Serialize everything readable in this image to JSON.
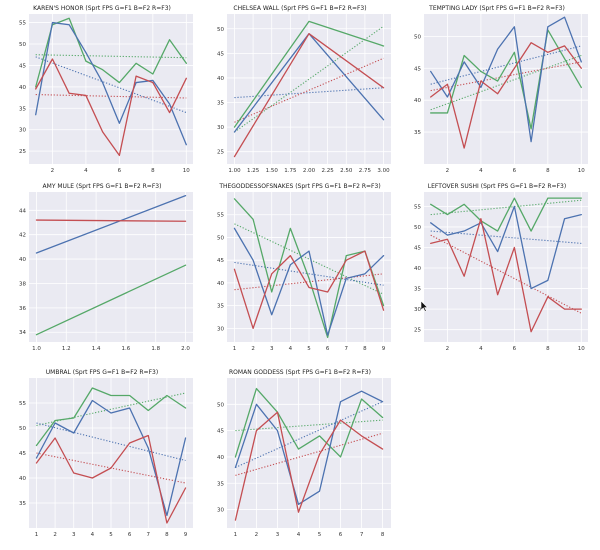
{
  "colors": {
    "G": "#55a868",
    "B": "#4c72b0",
    "R": "#c44e52"
  },
  "chart_data": [
    {
      "type": "line",
      "title": "KAREN'S HONOR (Sprt FPS G=F1 B=F2 R=F3)",
      "x": [
        1,
        2,
        3,
        4,
        5,
        6,
        7,
        8,
        9,
        10
      ],
      "xticks": [
        2,
        4,
        6,
        8,
        10
      ],
      "yticks": [
        25,
        30,
        35,
        40,
        45,
        50,
        55
      ],
      "xlim": [
        0.6,
        10.4
      ],
      "ylim": [
        22,
        57
      ],
      "series": [
        {
          "color": "G",
          "values": [
            40,
            54.5,
            56,
            46,
            44,
            41,
            45.5,
            43,
            51,
            45.5
          ]
        },
        {
          "color": "B",
          "values": [
            33.5,
            55,
            54.5,
            48,
            41,
            31.5,
            41,
            41.5,
            36,
            26.5
          ]
        },
        {
          "color": "R",
          "values": [
            39.5,
            46.5,
            38.5,
            38,
            29.5,
            24,
            42.5,
            41,
            34,
            42
          ]
        }
      ],
      "trends": [
        {
          "color": "G",
          "values": [
            47.5,
            46.8
          ]
        },
        {
          "color": "B",
          "values": [
            47,
            34
          ]
        },
        {
          "color": "R",
          "values": [
            38.2,
            37.4
          ]
        }
      ]
    },
    {
      "type": "line",
      "title": "CHELSEA WALL (Sprt FPS G=F1 B=F2 R=F3)",
      "x": [
        1,
        2,
        3
      ],
      "xticks": [
        1.0,
        1.25,
        1.5,
        1.75,
        2.0,
        2.25,
        2.5,
        2.75,
        3.0
      ],
      "xtick_labels": [
        "1.00",
        "1.25",
        "1.50",
        "1.75",
        "2.00",
        "2.25",
        "2.50",
        "2.75",
        "3.00"
      ],
      "yticks": [
        25,
        30,
        35,
        40,
        45,
        50
      ],
      "xlim": [
        0.9,
        3.1
      ],
      "ylim": [
        22.5,
        53
      ],
      "series": [
        {
          "color": "G",
          "values": [
            30,
            51.5,
            46.5
          ]
        },
        {
          "color": "B",
          "values": [
            29,
            49,
            31.5
          ]
        },
        {
          "color": "R",
          "values": [
            24,
            49,
            38
          ]
        }
      ],
      "trends": [
        {
          "color": "G",
          "values": [
            29,
            50.5
          ]
        },
        {
          "color": "B",
          "values": [
            36,
            38
          ]
        },
        {
          "color": "R",
          "values": [
            31,
            44
          ]
        }
      ]
    },
    {
      "type": "line",
      "title": "TEMPTING LADY (Sprt FPS G=F1 B=F2 R=F3)",
      "x": [
        1,
        2,
        3,
        4,
        5,
        6,
        7,
        8,
        9,
        10
      ],
      "xticks": [
        2,
        4,
        6,
        8,
        10
      ],
      "yticks": [
        35,
        40,
        45,
        50
      ],
      "xlim": [
        0.6,
        10.4
      ],
      "ylim": [
        30,
        53.5
      ],
      "series": [
        {
          "color": "G",
          "values": [
            38,
            38,
            47,
            44.5,
            43,
            47.5,
            35.5,
            51,
            46.5,
            42
          ]
        },
        {
          "color": "B",
          "values": [
            44.5,
            40.5,
            46,
            42,
            48,
            51.5,
            33.5,
            51.5,
            53,
            46
          ]
        },
        {
          "color": "R",
          "values": [
            40.5,
            42.5,
            32.5,
            43,
            41,
            45,
            49,
            47.5,
            48.5,
            45
          ]
        }
      ],
      "trends": [
        {
          "color": "G",
          "values": [
            38.5,
            47
          ]
        },
        {
          "color": "B",
          "values": [
            42.5,
            48.5
          ]
        },
        {
          "color": "R",
          "values": [
            41.5,
            46
          ]
        }
      ]
    },
    {
      "type": "line",
      "title": "AMY MULE (Sprt FPS G=F1 B=F2 R=F3)",
      "x": [
        1,
        2
      ],
      "xticks": [
        1.0,
        1.2,
        1.4,
        1.6,
        1.8,
        2.0
      ],
      "xtick_labels": [
        "1.0",
        "1.2",
        "1.4",
        "1.6",
        "1.8",
        "2.0"
      ],
      "yticks": [
        34,
        36,
        38,
        40,
        42,
        44
      ],
      "xlim": [
        0.95,
        2.05
      ],
      "ylim": [
        33.2,
        45.5
      ],
      "series": [
        {
          "color": "G",
          "values": [
            33.8,
            39.5
          ]
        },
        {
          "color": "B",
          "values": [
            40.5,
            45.2
          ]
        },
        {
          "color": "R",
          "values": [
            43.2,
            43.1
          ]
        }
      ],
      "trends": []
    },
    {
      "type": "line",
      "title": "THEGODDESSOFSNAKES (Sprt FPS G=F1 B=F2 R=F3)",
      "x": [
        1,
        2,
        3,
        4,
        5,
        6,
        7,
        8,
        9
      ],
      "xticks": [
        1,
        2,
        3,
        4,
        5,
        6,
        7,
        8,
        9
      ],
      "yticks": [
        30,
        35,
        40,
        45,
        50,
        55
      ],
      "xlim": [
        0.6,
        9.4
      ],
      "ylim": [
        27,
        60
      ],
      "series": [
        {
          "color": "G",
          "values": [
            58.5,
            54,
            38,
            52,
            41,
            28,
            46,
            47,
            35
          ]
        },
        {
          "color": "B",
          "values": [
            52,
            45,
            33,
            44,
            47,
            28.5,
            41,
            42,
            46
          ]
        },
        {
          "color": "R",
          "values": [
            43,
            30,
            42,
            46,
            39,
            38,
            45,
            47,
            34
          ]
        }
      ],
      "trends": [
        {
          "color": "G",
          "values": [
            53,
            37.5
          ]
        },
        {
          "color": "B",
          "values": [
            44.5,
            39.5
          ]
        },
        {
          "color": "R",
          "values": [
            38.5,
            42
          ]
        }
      ]
    },
    {
      "type": "line",
      "title": "LEFTOVER SUSHI (Sprt FPS G=F1 B=F2 R=F3)",
      "x": [
        1,
        2,
        3,
        4,
        5,
        6,
        7,
        8,
        9,
        10
      ],
      "xticks": [
        2,
        4,
        6,
        8,
        10
      ],
      "yticks": [
        25,
        30,
        35,
        40,
        45,
        50,
        55
      ],
      "xlim": [
        0.6,
        10.4
      ],
      "ylim": [
        22,
        58.5
      ],
      "series": [
        {
          "color": "G",
          "values": [
            55.5,
            53,
            55.5,
            51.5,
            49,
            57,
            49,
            57,
            57,
            57
          ]
        },
        {
          "color": "B",
          "values": [
            51,
            48,
            49,
            51,
            44,
            55,
            35,
            37,
            52,
            53
          ]
        },
        {
          "color": "R",
          "values": [
            46,
            47,
            38,
            52,
            33.5,
            45,
            24.5,
            33,
            30,
            30
          ]
        }
      ],
      "trends": [
        {
          "color": "G",
          "values": [
            53,
            56.5
          ]
        },
        {
          "color": "B",
          "values": [
            49,
            46
          ]
        },
        {
          "color": "R",
          "values": [
            48,
            29
          ]
        }
      ]
    },
    {
      "type": "line",
      "title": "UMBRAL (Sprt FPS G=F1 B=F2 R=F3)",
      "x": [
        1,
        2,
        3,
        4,
        5,
        6,
        7,
        8,
        9
      ],
      "xticks": [
        1,
        2,
        3,
        4,
        5,
        6,
        7,
        8,
        9
      ],
      "yticks": [
        35,
        40,
        45,
        50,
        55
      ],
      "xlim": [
        0.6,
        9.4
      ],
      "ylim": [
        30,
        60
      ],
      "series": [
        {
          "color": "G",
          "values": [
            46.5,
            51.5,
            52,
            58,
            56.5,
            56.5,
            53.5,
            56.5,
            54
          ]
        },
        {
          "color": "B",
          "values": [
            44,
            51,
            49,
            55.5,
            53,
            54,
            46,
            32.5,
            48
          ]
        },
        {
          "color": "R",
          "values": [
            43,
            48,
            41,
            40,
            42,
            47,
            48.5,
            31,
            38
          ]
        }
      ],
      "trends": [
        {
          "color": "G",
          "values": [
            50.5,
            57
          ]
        },
        {
          "color": "B",
          "values": [
            51,
            43.5
          ]
        },
        {
          "color": "R",
          "values": [
            45,
            39
          ]
        }
      ]
    },
    {
      "type": "line",
      "title": "ROMAN GODDESS (Sprt FPS G=F1 B=F2 R=F3)",
      "x": [
        1,
        2,
        3,
        4,
        5,
        6,
        7,
        8
      ],
      "xticks": [
        1,
        2,
        3,
        4,
        5,
        6,
        7,
        8
      ],
      "yticks": [
        30,
        35,
        40,
        45,
        50
      ],
      "xlim": [
        0.6,
        8.4
      ],
      "ylim": [
        26.5,
        55
      ],
      "series": [
        {
          "color": "G",
          "values": [
            40,
            53,
            48.5,
            41.5,
            44,
            40,
            51,
            47.5
          ]
        },
        {
          "color": "B",
          "values": [
            38,
            50,
            45,
            31,
            33.5,
            50.5,
            52.5,
            50.5
          ]
        },
        {
          "color": "R",
          "values": [
            28,
            45,
            48.5,
            29.5,
            40.5,
            47,
            44,
            41.5
          ]
        }
      ],
      "trends": [
        {
          "color": "G",
          "values": [
            45,
            47
          ]
        },
        {
          "color": "B",
          "values": [
            38,
            50.5
          ]
        },
        {
          "color": "R",
          "values": [
            36.5,
            44.5
          ]
        }
      ]
    }
  ]
}
